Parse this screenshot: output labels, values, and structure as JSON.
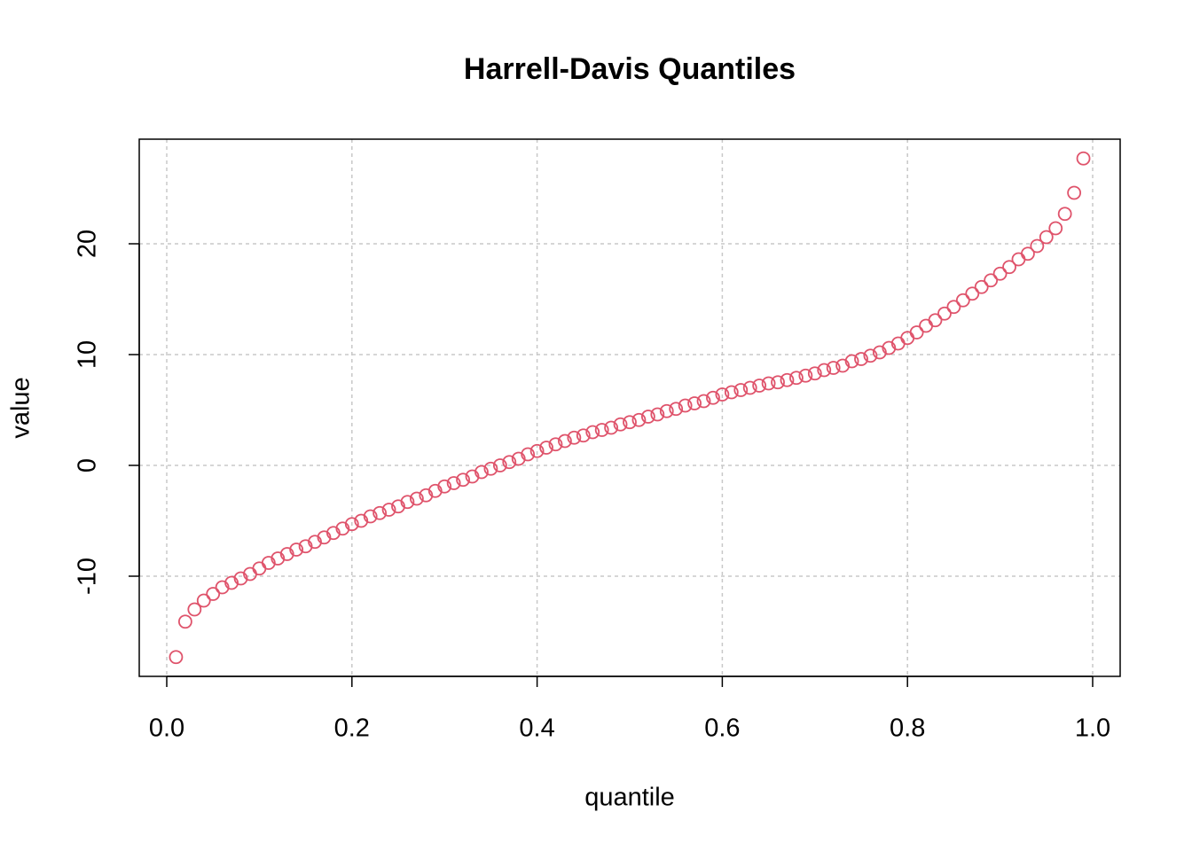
{
  "chart_data": {
    "type": "scatter",
    "title": "Harrell-Davis Quantiles",
    "x_label": "quantile",
    "y_label": "value",
    "series": [
      {
        "color": "#DF536B",
        "x": [
          0.01,
          0.02,
          0.03,
          0.04,
          0.05,
          0.06,
          0.07,
          0.08,
          0.09,
          0.1,
          0.11,
          0.12,
          0.13,
          0.14,
          0.15,
          0.16,
          0.17,
          0.18,
          0.19,
          0.2,
          0.21,
          0.22,
          0.23,
          0.24,
          0.25,
          0.26,
          0.27,
          0.28,
          0.29,
          0.3,
          0.31,
          0.32,
          0.33,
          0.34,
          0.35,
          0.36,
          0.37,
          0.38,
          0.39,
          0.4,
          0.41,
          0.42,
          0.43,
          0.44,
          0.45,
          0.46,
          0.47,
          0.48,
          0.49,
          0.5,
          0.51,
          0.52,
          0.53,
          0.54,
          0.55,
          0.56,
          0.57,
          0.58,
          0.59,
          0.6,
          0.61,
          0.62,
          0.63,
          0.64,
          0.65,
          0.66,
          0.67,
          0.68,
          0.69,
          0.7,
          0.71,
          0.72,
          0.73,
          0.74,
          0.75,
          0.76,
          0.77,
          0.78,
          0.79,
          0.8,
          0.81,
          0.82,
          0.83,
          0.84,
          0.85,
          0.86,
          0.87,
          0.88,
          0.89,
          0.9,
          0.91,
          0.92,
          0.93,
          0.94,
          0.95,
          0.96,
          0.97,
          0.98,
          0.99
        ],
        "values": [
          -17.3,
          -14.1,
          -13.0,
          -12.2,
          -11.6,
          -11.0,
          -10.6,
          -10.2,
          -9.8,
          -9.3,
          -8.8,
          -8.4,
          -8.0,
          -7.6,
          -7.3,
          -6.9,
          -6.5,
          -6.1,
          -5.7,
          -5.3,
          -5.0,
          -4.6,
          -4.3,
          -4.0,
          -3.7,
          -3.3,
          -3.0,
          -2.7,
          -2.3,
          -1.9,
          -1.6,
          -1.3,
          -1.0,
          -0.6,
          -0.3,
          0.0,
          0.3,
          0.6,
          1.0,
          1.3,
          1.6,
          1.9,
          2.2,
          2.5,
          2.7,
          3.0,
          3.2,
          3.4,
          3.7,
          3.9,
          4.1,
          4.4,
          4.6,
          4.9,
          5.1,
          5.4,
          5.6,
          5.8,
          6.1,
          6.4,
          6.6,
          6.8,
          7.0,
          7.2,
          7.4,
          7.5,
          7.7,
          7.9,
          8.1,
          8.3,
          8.6,
          8.8,
          9.0,
          9.4,
          9.6,
          9.9,
          10.2,
          10.6,
          11.0,
          11.5,
          12.0,
          12.6,
          13.1,
          13.7,
          14.3,
          14.9,
          15.5,
          16.1,
          16.7,
          17.3,
          17.9,
          18.6,
          19.1,
          19.8,
          20.6,
          21.4,
          22.7,
          24.6,
          27.7
        ]
      }
    ],
    "xlim": [
      -0.0297,
      1.0297
    ],
    "ylim": [
      -19.04,
      29.44
    ],
    "xticks": [
      {
        "value": 0,
        "label": "0.0"
      },
      0.2,
      0.4,
      0.6,
      0.8,
      {
        "value": 1,
        "label": "1.0"
      }
    ],
    "yticks": [
      -10,
      0,
      10,
      20
    ],
    "grid": true
  }
}
